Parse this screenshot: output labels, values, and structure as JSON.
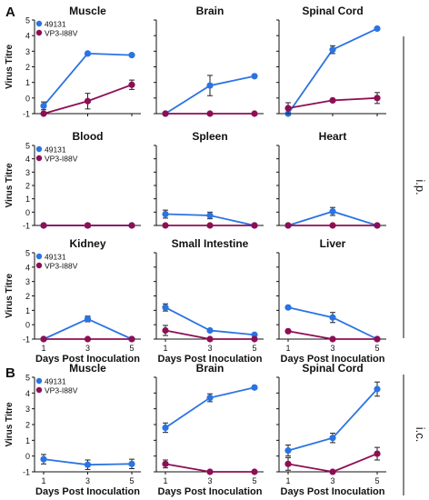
{
  "figure": {
    "panel_labels": [
      "A",
      "B"
    ],
    "route_labels": [
      "i.p.",
      "i.c."
    ],
    "legend": [
      "49131",
      "VP3-I88V"
    ],
    "ylabel": "Virus Titre",
    "xlabel": "Days Post Inoculation",
    "colors": {
      "49131": "#2a73e3",
      "VP3-I88V": "#8e0e55"
    }
  },
  "chart_data": [
    {
      "type": "line",
      "panel": "A",
      "title": "Muscle",
      "x": [
        1,
        3,
        5
      ],
      "ylim": [
        -1,
        5
      ],
      "yticks": [
        -1,
        0,
        1,
        2,
        3,
        4,
        5
      ],
      "series": [
        {
          "name": "49131",
          "values": [
            -0.5,
            2.85,
            2.75
          ],
          "err": [
            0.25,
            0.05,
            0.05
          ]
        },
        {
          "name": "VP3-I88V",
          "values": [
            -1.0,
            -0.2,
            0.85
          ],
          "err": [
            0.05,
            0.5,
            0.3
          ]
        }
      ]
    },
    {
      "type": "line",
      "panel": "A",
      "title": "Brain",
      "x": [
        1,
        3,
        5
      ],
      "ylim": [
        -1,
        5
      ],
      "series": [
        {
          "name": "49131",
          "values": [
            -1.0,
            0.8,
            1.4
          ],
          "err": [
            0.05,
            0.65,
            0.05
          ]
        },
        {
          "name": "VP3-I88V",
          "values": [
            -1.0,
            -1.0,
            -1.0
          ],
          "err": [
            0.0,
            0.0,
            0.0
          ]
        }
      ]
    },
    {
      "type": "line",
      "panel": "A",
      "title": "Spinal Cord",
      "x": [
        1,
        3,
        5
      ],
      "ylim": [
        -1,
        5
      ],
      "series": [
        {
          "name": "49131",
          "values": [
            -1.0,
            3.1,
            4.45
          ],
          "err": [
            0.05,
            0.25,
            0.05
          ]
        },
        {
          "name": "VP3-I88V",
          "values": [
            -0.65,
            -0.15,
            0.0
          ],
          "err": [
            0.35,
            0.05,
            0.35
          ]
        }
      ]
    },
    {
      "type": "line",
      "panel": "A",
      "title": "Blood",
      "x": [
        1,
        3,
        5
      ],
      "ylim": [
        -1,
        5
      ],
      "yticks": [
        -1,
        0,
        1,
        2,
        3,
        4,
        5
      ],
      "series": [
        {
          "name": "49131",
          "values": [
            -1.0,
            -1.0,
            -1.0
          ],
          "err": [
            0.0,
            0.0,
            0.0
          ]
        },
        {
          "name": "VP3-I88V",
          "values": [
            -1.0,
            -1.0,
            -1.0
          ],
          "err": [
            0.0,
            0.15,
            0.0
          ]
        }
      ]
    },
    {
      "type": "line",
      "panel": "A",
      "title": "Spleen",
      "x": [
        1,
        3,
        5
      ],
      "ylim": [
        -1,
        5
      ],
      "series": [
        {
          "name": "49131",
          "values": [
            -0.15,
            -0.25,
            -1.0
          ],
          "err": [
            0.3,
            0.25,
            0.0
          ]
        },
        {
          "name": "VP3-I88V",
          "values": [
            -1.0,
            -1.0,
            -1.0
          ],
          "err": [
            0.0,
            0.0,
            0.0
          ]
        }
      ]
    },
    {
      "type": "line",
      "panel": "A",
      "title": "Heart",
      "x": [
        1,
        3,
        5
      ],
      "ylim": [
        -1,
        5
      ],
      "series": [
        {
          "name": "49131",
          "values": [
            -1.0,
            0.05,
            -1.0
          ],
          "err": [
            0.0,
            0.3,
            0.0
          ]
        },
        {
          "name": "VP3-I88V",
          "values": [
            -1.0,
            -1.0,
            -1.0
          ],
          "err": [
            0.0,
            0.0,
            0.0
          ]
        }
      ]
    },
    {
      "type": "line",
      "panel": "A",
      "title": "Kidney",
      "x": [
        1,
        3,
        5
      ],
      "xticks": [
        "1",
        "3",
        "5"
      ],
      "ylim": [
        -1,
        5
      ],
      "yticks": [
        -1,
        0,
        1,
        2,
        3,
        4,
        5
      ],
      "series": [
        {
          "name": "49131",
          "values": [
            -1.0,
            0.4,
            -1.0
          ],
          "err": [
            0.0,
            0.2,
            0.0
          ]
        },
        {
          "name": "VP3-I88V",
          "values": [
            -1.0,
            -1.0,
            -1.0
          ],
          "err": [
            0.0,
            0.0,
            0.0
          ]
        }
      ]
    },
    {
      "type": "line",
      "panel": "A",
      "title": "Small Intestine",
      "x": [
        1,
        3,
        5
      ],
      "xticks": [
        "1",
        "3",
        "5"
      ],
      "ylim": [
        -1,
        5
      ],
      "series": [
        {
          "name": "49131",
          "values": [
            1.2,
            -0.4,
            -0.7
          ],
          "err": [
            0.25,
            0.1,
            0.05
          ]
        },
        {
          "name": "VP3-I88V",
          "values": [
            -0.4,
            -1.0,
            -1.0
          ],
          "err": [
            0.35,
            0.0,
            0.0
          ]
        }
      ]
    },
    {
      "type": "line",
      "panel": "A",
      "title": "Liver",
      "x": [
        1,
        3,
        5
      ],
      "xticks": [
        "1",
        "3",
        "5"
      ],
      "ylim": [
        -1,
        5
      ],
      "series": [
        {
          "name": "49131",
          "values": [
            1.2,
            0.5,
            -1.0
          ],
          "err": [
            0.05,
            0.35,
            0.0
          ]
        },
        {
          "name": "VP3-I88V",
          "values": [
            -0.45,
            -1.0,
            -1.0
          ],
          "err": [
            0.05,
            0.0,
            0.0
          ]
        }
      ]
    },
    {
      "type": "line",
      "panel": "B",
      "title": "Muscle",
      "x": [
        1,
        3,
        5
      ],
      "xticks": [
        "1",
        "3",
        "5"
      ],
      "ylim": [
        -1,
        5
      ],
      "yticks": [
        -1,
        0,
        1,
        2,
        3,
        4,
        5
      ],
      "series": [
        {
          "name": "49131",
          "values": [
            -0.2,
            -0.55,
            -0.5
          ],
          "err": [
            0.3,
            0.3,
            0.3
          ]
        }
      ]
    },
    {
      "type": "line",
      "panel": "B",
      "title": "Brain",
      "x": [
        1,
        3,
        5
      ],
      "xticks": [
        "1",
        "3",
        "5"
      ],
      "ylim": [
        -1,
        5
      ],
      "series": [
        {
          "name": "49131",
          "values": [
            1.8,
            3.7,
            4.35
          ],
          "err": [
            0.3,
            0.25,
            0.1
          ]
        },
        {
          "name": "VP3-I88V",
          "values": [
            -0.5,
            -1.0,
            -1.0
          ],
          "err": [
            0.25,
            0.0,
            0.0
          ]
        }
      ]
    },
    {
      "type": "line",
      "panel": "B",
      "title": "Spinal Cord",
      "x": [
        1,
        3,
        5
      ],
      "xticks": [
        "1",
        "3",
        "5"
      ],
      "ylim": [
        -1,
        5
      ],
      "series": [
        {
          "name": "49131",
          "values": [
            0.35,
            1.15,
            4.25
          ],
          "err": [
            0.35,
            0.3,
            0.45
          ]
        },
        {
          "name": "VP3-I88V",
          "values": [
            -0.5,
            -1.0,
            0.15
          ],
          "err": [
            0.4,
            0.0,
            0.4
          ]
        }
      ]
    }
  ]
}
